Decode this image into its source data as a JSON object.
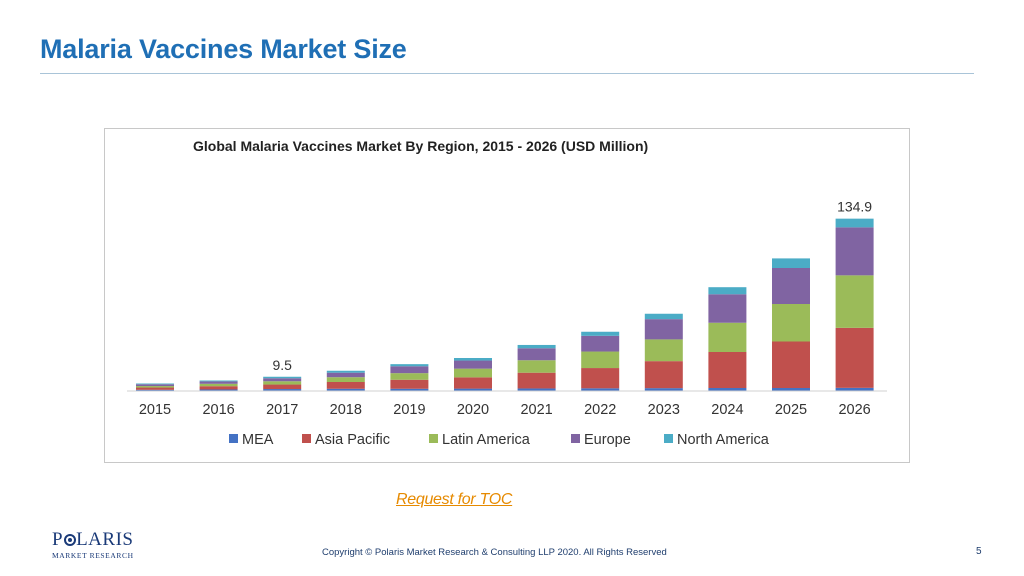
{
  "slide": {
    "title": "Malaria Vaccines Market Size",
    "toc_link": "Request for TOC",
    "copyright": "Copyright © Polaris Market Research & Consulting LLP 2020. All Rights Reserved",
    "page_number": "5"
  },
  "logo": {
    "text_before_mark": "P",
    "text_after_mark": "LARIS",
    "subtitle": "MARKET RESEARCH",
    "color": "#1a3a78"
  },
  "chart_data": {
    "type": "bar",
    "stacked": true,
    "title": "Global Malaria Vaccines Market By Region, 2015  - 2026 (USD  Million)",
    "categories": [
      "2015",
      "2016",
      "2017",
      "2018",
      "2019",
      "2020",
      "2021",
      "2022",
      "2023",
      "2024",
      "2025",
      "2026"
    ],
    "series": [
      {
        "name": "MEA",
        "color": "#4472c4",
        "values": [
          0.8,
          1.0,
          1.3,
          1.5,
          1.5,
          1.6,
          1.7,
          1.8,
          1.9,
          2.0,
          2.0,
          2.1
        ]
      },
      {
        "name": "Asia Pacific",
        "color": "#c0504d",
        "values": [
          1.5,
          2.2,
          3.0,
          4.5,
          6.0,
          7.5,
          10.5,
          13.5,
          18.0,
          24.0,
          31.0,
          40.0
        ]
      },
      {
        "name": "Latin America",
        "color": "#9bbb59",
        "values": [
          1.0,
          1.6,
          2.2,
          3.2,
          4.4,
          5.8,
          8.3,
          11.0,
          14.5,
          19.5,
          25.0,
          35.0
        ]
      },
      {
        "name": "Europe",
        "color": "#8064a2",
        "values": [
          1.2,
          1.6,
          2.0,
          3.0,
          4.6,
          5.4,
          8.0,
          10.5,
          13.5,
          19.0,
          24.0,
          32.0
        ]
      },
      {
        "name": "North America",
        "color": "#4bacc6",
        "values": [
          0.5,
          0.6,
          1.0,
          1.3,
          1.4,
          1.7,
          2.2,
          2.7,
          3.6,
          4.7,
          6.4,
          5.8
        ]
      }
    ],
    "annotations": [
      {
        "category": "2017",
        "text": "9.5"
      },
      {
        "category": "2026",
        "text": "134.9"
      }
    ],
    "ylim": [
      0,
      140
    ],
    "grid": false,
    "legend_position": "bottom"
  }
}
